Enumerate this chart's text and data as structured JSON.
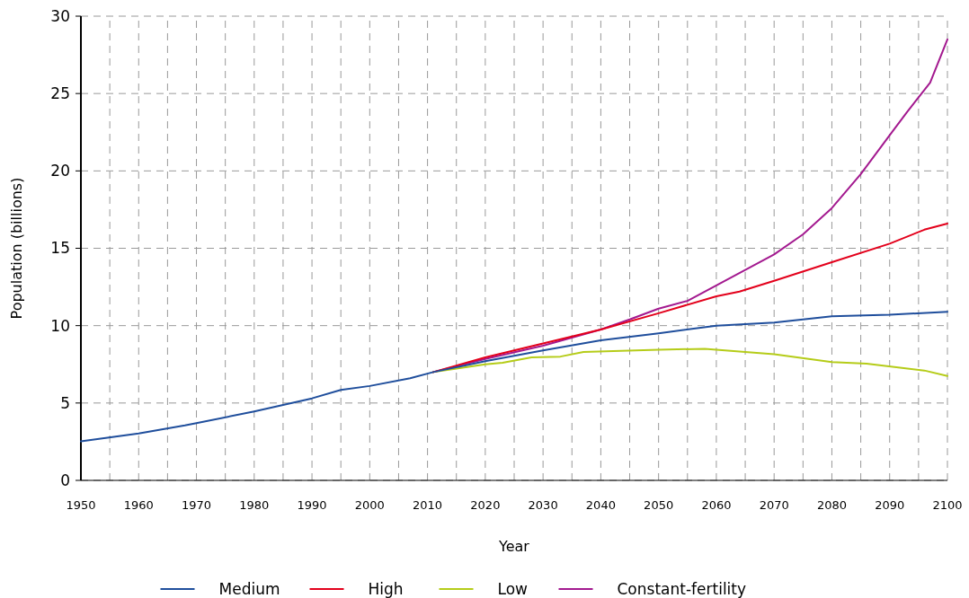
{
  "chart_data": {
    "type": "line",
    "xlabel": "Year",
    "ylabel": "Population (billions)",
    "xlim": [
      1950,
      2100
    ],
    "ylim": [
      0,
      30
    ],
    "xticks": [
      1950,
      {
        "value": 1955,
        "label": null
      },
      1960,
      {
        "value": 1965,
        "label": null
      },
      1970,
      {
        "value": 1975,
        "label": null
      },
      1980,
      {
        "value": 1985,
        "label": null
      },
      1990,
      {
        "value": 1995,
        "label": null
      },
      2000,
      {
        "value": 2005,
        "label": null
      },
      2010,
      {
        "value": 2015,
        "label": null
      },
      2020,
      {
        "value": 2025,
        "label": null
      },
      2030,
      {
        "value": 2035,
        "label": null
      },
      2040,
      {
        "value": 2045,
        "label": null
      },
      2050,
      {
        "value": 2055,
        "label": null
      },
      2060,
      {
        "value": 2065,
        "label": null
      },
      2070,
      {
        "value": 2075,
        "label": null
      },
      2080,
      {
        "value": 2085,
        "label": null
      },
      2090,
      {
        "value": 2095,
        "label": null
      },
      2100
    ],
    "yticks": [
      0,
      5,
      10,
      15,
      20,
      25,
      30
    ],
    "grid": true,
    "legend": "bottom",
    "line_style": "solid",
    "series": [
      {
        "name": "Medium",
        "color": "#1f4e9c",
        "x": [
          1950,
          1960,
          1968,
          1970,
          1980,
          1990,
          1995,
          2000,
          2007,
          2011,
          2020,
          2030,
          2040,
          2050,
          2060,
          2070,
          2080,
          2090,
          2100
        ],
        "values": [
          2.53,
          3.03,
          3.55,
          3.7,
          4.45,
          5.3,
          5.85,
          6.1,
          6.6,
          7.0,
          7.7,
          8.4,
          9.05,
          9.5,
          10.0,
          10.2,
          10.6,
          10.7,
          10.9
        ]
      },
      {
        "name": "High",
        "color": "#e3001b",
        "x": [
          2011,
          2020,
          2030,
          2040,
          2050,
          2060,
          2064,
          2070,
          2080,
          2090,
          2096,
          2100
        ],
        "values": [
          7.0,
          7.95,
          8.85,
          9.75,
          10.8,
          11.9,
          12.2,
          12.9,
          14.1,
          15.3,
          16.2,
          16.6
        ]
      },
      {
        "name": "Low",
        "color": "#b5cc18",
        "x": [
          2011,
          2020,
          2023,
          2028,
          2033,
          2037,
          2050,
          2058,
          2070,
          2080,
          2086,
          2096,
          2100
        ],
        "values": [
          7.0,
          7.5,
          7.6,
          7.95,
          8.0,
          8.3,
          8.45,
          8.5,
          8.15,
          7.65,
          7.55,
          7.1,
          6.75
        ]
      },
      {
        "name": "Constant-fertility",
        "color": "#a3198f",
        "x": [
          2011,
          2020,
          2030,
          2040,
          2045,
          2050,
          2055,
          2060,
          2070,
          2075,
          2080,
          2085,
          2090,
          2093,
          2097,
          2100
        ],
        "values": [
          7.0,
          7.85,
          8.7,
          9.75,
          10.4,
          11.1,
          11.6,
          12.6,
          14.6,
          15.9,
          17.6,
          19.8,
          22.3,
          23.8,
          25.7,
          28.5
        ]
      }
    ]
  }
}
